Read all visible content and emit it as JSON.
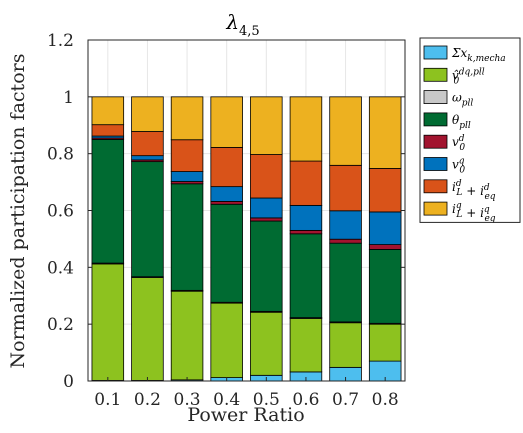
{
  "chart_data": {
    "type": "bar",
    "stacked": true,
    "title": "λ",
    "title_subscript": "4,5",
    "xlabel": "Power Ratio",
    "ylabel": "Normalized participation factors",
    "ylim": [
      0,
      1.2
    ],
    "yticks": [
      "0",
      "0.2",
      "0.4",
      "0.6",
      "0.8",
      "1",
      "1.2"
    ],
    "categories": [
      "0.1",
      "0.2",
      "0.3",
      "0.4",
      "0.5",
      "0.6",
      "0.7",
      "0.8"
    ],
    "grid": true,
    "legend_position": "outside-top-right",
    "series": [
      {
        "name": "Σx",
        "sub": "k,mecha",
        "color": "#4DBEEE",
        "values": [
          0.002,
          0.002,
          0.004,
          0.012,
          0.02,
          0.032,
          0.048,
          0.07
        ]
      },
      {
        "name": "v̂",
        "sub": "0",
        "sup": "dq,pll",
        "color": "#8DC21F",
        "values": [
          0.41,
          0.362,
          0.312,
          0.262,
          0.222,
          0.188,
          0.157,
          0.13
        ]
      },
      {
        "name": "ω",
        "sub": "pll",
        "color": "#C8C8C8",
        "values": [
          0.003,
          0.003,
          0.003,
          0.003,
          0.003,
          0.003,
          0.003,
          0.003
        ]
      },
      {
        "name": "θ",
        "sub": "pll",
        "color": "#006B32",
        "values": [
          0.435,
          0.405,
          0.375,
          0.345,
          0.318,
          0.295,
          0.277,
          0.26
        ]
      },
      {
        "name": "v",
        "sub": "0",
        "sup": "d",
        "color": "#A2142F",
        "values": [
          0.005,
          0.006,
          0.008,
          0.01,
          0.011,
          0.012,
          0.014,
          0.017
        ]
      },
      {
        "name": "v",
        "sub": "0",
        "sup": "q",
        "color": "#0072BD",
        "values": [
          0.007,
          0.015,
          0.035,
          0.052,
          0.07,
          0.088,
          0.1,
          0.115
        ]
      },
      {
        "name": "i",
        "sub": "L",
        "sup": "d",
        "name2": "i",
        "sub2": "eq",
        "sup2": "d",
        "color": "#D95319",
        "values": [
          0.04,
          0.085,
          0.112,
          0.138,
          0.153,
          0.156,
          0.16,
          0.153
        ]
      },
      {
        "name": "i",
        "sub": "L",
        "sup": "q",
        "name2": "i",
        "sub2": "eq",
        "sup2": "q",
        "color": "#EDB120",
        "values": [
          0.098,
          0.122,
          0.151,
          0.178,
          0.203,
          0.226,
          0.241,
          0.252
        ]
      }
    ]
  }
}
